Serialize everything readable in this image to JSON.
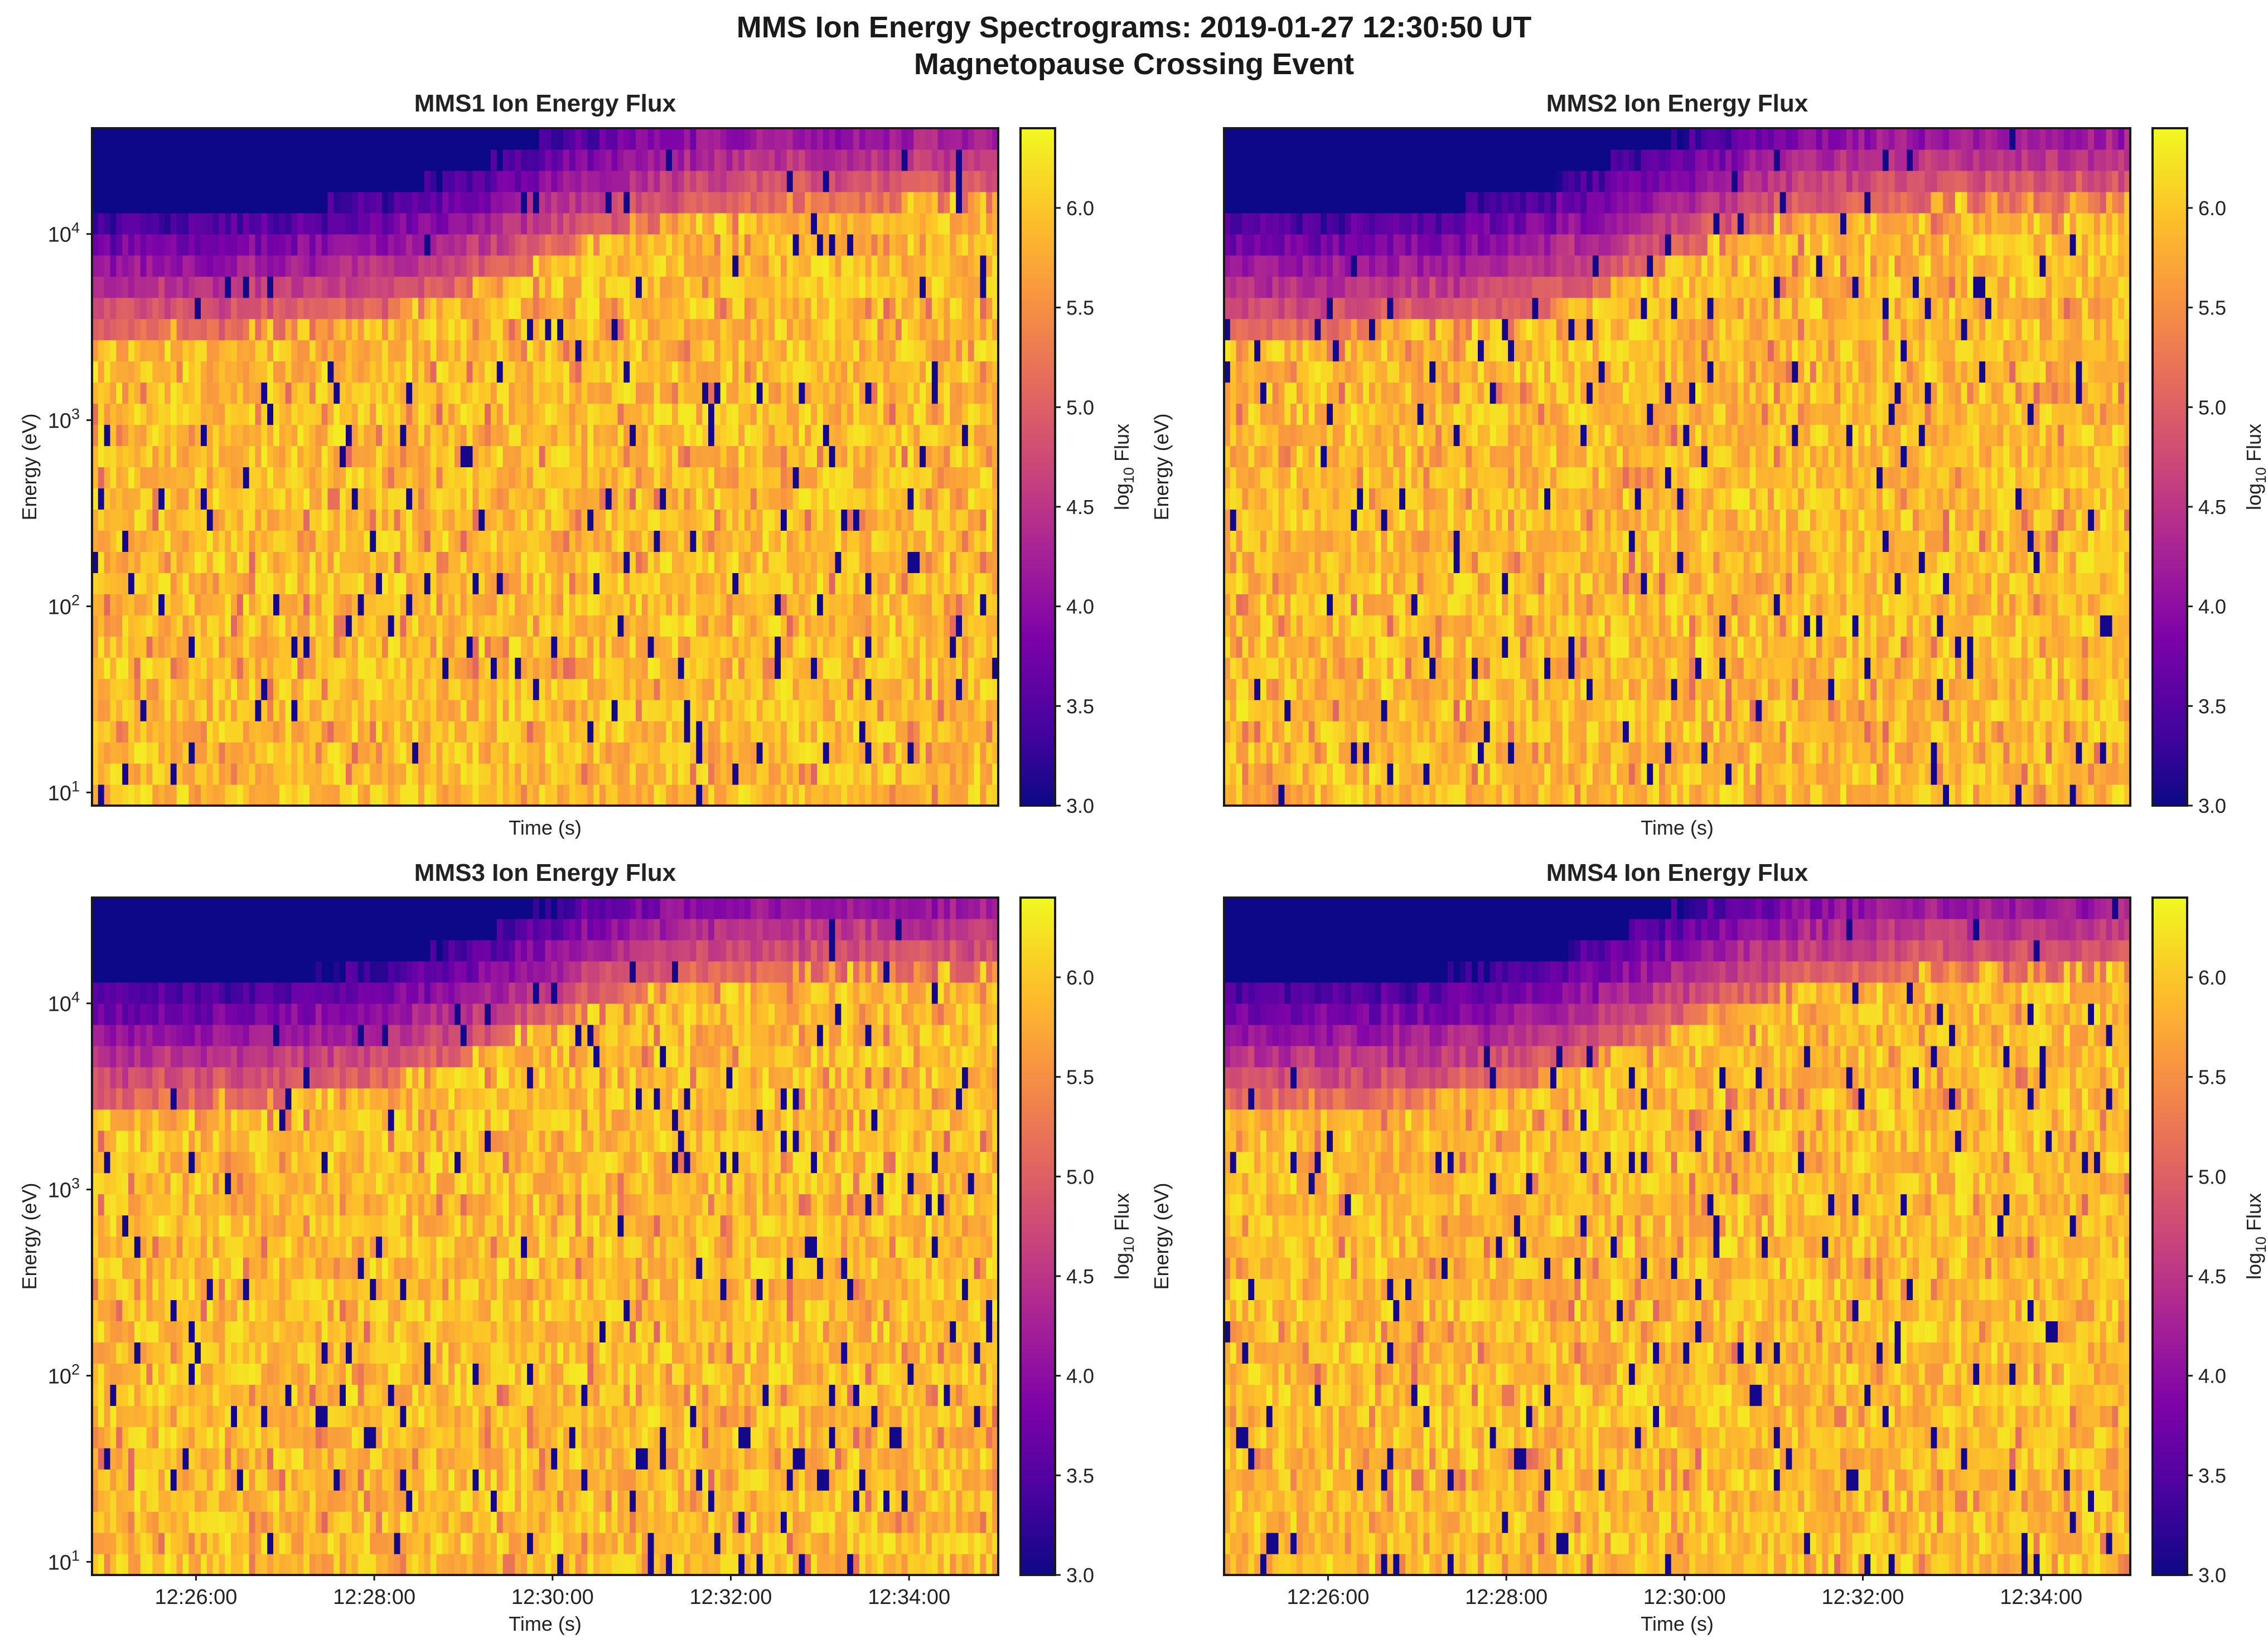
{
  "figure": {
    "title_line1": "MMS Ion Energy Spectrograms: 2019-01-27 12:30:50 UT",
    "title_line2": "Magnetopause Crossing Event"
  },
  "chart_data": [
    {
      "type": "heatmap",
      "title": "MMS1 Ion Energy Flux",
      "xlabel": "Time (s)",
      "ylabel": "Energy (eV)",
      "show_ylabels": true,
      "show_xticklabels": false,
      "x_range": [
        "12:24:50",
        "12:35:00"
      ],
      "x_ticks": [
        "12:26:00",
        "12:28:00",
        "12:30:00",
        "12:32:00",
        "12:34:00"
      ],
      "y_scale": "log",
      "y_range": [
        8.5,
        37000
      ],
      "y_ticks": [
        10,
        100,
        1000,
        10000
      ],
      "y_tick_labels": [
        "10",
        "10",
        "10",
        "10"
      ],
      "y_tick_exponents": [
        "1",
        "2",
        "3",
        "4"
      ],
      "colorbar": {
        "label": "log10 Flux",
        "label_base": "log",
        "label_sub": "10",
        "label_rest": " Flux",
        "range": [
          3.0,
          6.4
        ],
        "ticks": [
          "3.0",
          "3.5",
          "4.0",
          "4.5",
          "5.0",
          "5.5",
          "6.0"
        ],
        "colormap": "plasma"
      },
      "regime": "background energy cutoff rises from ~6 keV before 12:28 to ~25 keV after 12:31; ~5.5-6.3 log10 flux below cutoff, 3.0 above",
      "seed": 11
    },
    {
      "type": "heatmap",
      "title": "MMS2 Ion Energy Flux",
      "xlabel": "Time (s)",
      "ylabel": "Energy (eV)",
      "show_ylabels": false,
      "show_xticklabels": false,
      "x_range": [
        "12:24:50",
        "12:35:00"
      ],
      "x_ticks": [
        "12:26:00",
        "12:28:00",
        "12:30:00",
        "12:32:00",
        "12:34:00"
      ],
      "y_scale": "log",
      "y_range": [
        8.5,
        37000
      ],
      "y_ticks": [
        10,
        100,
        1000,
        10000
      ],
      "colorbar": {
        "label": "log10 Flux",
        "label_base": "log",
        "label_sub": "10",
        "label_rest": " Flux",
        "range": [
          3.0,
          6.4
        ],
        "ticks": [
          "3.0",
          "3.5",
          "4.0",
          "4.5",
          "5.0",
          "5.5",
          "6.0"
        ],
        "colormap": "plasma"
      },
      "seed": 23
    },
    {
      "type": "heatmap",
      "title": "MMS3 Ion Energy Flux",
      "xlabel": "Time (s)",
      "ylabel": "Energy (eV)",
      "show_ylabels": true,
      "show_xticklabels": true,
      "x_range": [
        "12:24:50",
        "12:35:00"
      ],
      "x_ticks": [
        "12:26:00",
        "12:28:00",
        "12:30:00",
        "12:32:00",
        "12:34:00"
      ],
      "y_scale": "log",
      "y_range": [
        8.5,
        37000
      ],
      "y_ticks": [
        10,
        100,
        1000,
        10000
      ],
      "y_tick_labels": [
        "10",
        "10",
        "10",
        "10"
      ],
      "y_tick_exponents": [
        "1",
        "2",
        "3",
        "4"
      ],
      "colorbar": {
        "label": "log10 Flux",
        "label_base": "log",
        "label_sub": "10",
        "label_rest": " Flux",
        "range": [
          3.0,
          6.4
        ],
        "ticks": [
          "3.0",
          "3.5",
          "4.0",
          "4.5",
          "5.0",
          "5.5",
          "6.0"
        ],
        "colormap": "plasma"
      },
      "seed": 37
    },
    {
      "type": "heatmap",
      "title": "MMS4 Ion Energy Flux",
      "xlabel": "Time (s)",
      "ylabel": "Energy (eV)",
      "show_ylabels": false,
      "show_xticklabels": true,
      "x_range": [
        "12:24:50",
        "12:35:00"
      ],
      "x_ticks": [
        "12:26:00",
        "12:28:00",
        "12:30:00",
        "12:32:00",
        "12:34:00"
      ],
      "y_scale": "log",
      "y_range": [
        8.5,
        37000
      ],
      "y_ticks": [
        10,
        100,
        1000,
        10000
      ],
      "colorbar": {
        "label": "log10 Flux",
        "label_base": "log",
        "label_sub": "10",
        "label_rest": " Flux",
        "range": [
          3.0,
          6.4
        ],
        "ticks": [
          "3.0",
          "3.5",
          "4.0",
          "4.5",
          "5.0",
          "5.5",
          "6.0"
        ],
        "colormap": "plasma"
      },
      "seed": 53
    }
  ]
}
